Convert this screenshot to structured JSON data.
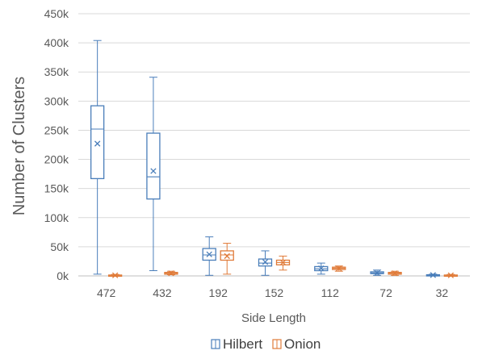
{
  "chart_data": {
    "type": "boxplot",
    "xlabel": "Side Length",
    "ylabel": "Number of Clusters",
    "ylim": [
      0,
      450000
    ],
    "y_ticks": [
      0,
      50000,
      100000,
      150000,
      200000,
      250000,
      300000,
      350000,
      400000,
      450000
    ],
    "y_tick_labels": [
      "0k",
      "50k",
      "100k",
      "150k",
      "200k",
      "250k",
      "300k",
      "350k",
      "400k",
      "450k"
    ],
    "categories": [
      "472",
      "432",
      "192",
      "152",
      "112",
      "72",
      "32"
    ],
    "grid": "horizontal",
    "legend_position": "bottom",
    "series": [
      {
        "name": "Hilbert",
        "color": "#4a7eba",
        "boxes": [
          {
            "min": 3000,
            "q1": 167000,
            "median": 252000,
            "q3": 292000,
            "max": 404000,
            "mean": 227000
          },
          {
            "min": 9000,
            "q1": 132000,
            "median": 170000,
            "q3": 245000,
            "max": 341000,
            "mean": 180000
          },
          {
            "min": 1000,
            "q1": 27000,
            "median": 36000,
            "q3": 47000,
            "max": 67000,
            "mean": 37000
          },
          {
            "min": 1000,
            "q1": 17000,
            "median": 22000,
            "q3": 29000,
            "max": 43000,
            "mean": 24000
          },
          {
            "min": 3000,
            "q1": 9000,
            "median": 12000,
            "q3": 16000,
            "max": 22000,
            "mean": 13000
          },
          {
            "min": 1000,
            "q1": 4000,
            "median": 5000,
            "q3": 7000,
            "max": 10000,
            "mean": 5000
          },
          {
            "min": 0,
            "q1": 1000,
            "median": 1500,
            "q3": 2000,
            "max": 3000,
            "mean": 1500
          }
        ]
      },
      {
        "name": "Onion",
        "color": "#e07b39",
        "boxes": [
          {
            "min": 0,
            "q1": 500,
            "median": 1000,
            "q3": 1500,
            "max": 2500,
            "mean": 1000
          },
          {
            "min": 2000,
            "q1": 3000,
            "median": 4500,
            "q3": 6000,
            "max": 8000,
            "mean": 4500
          },
          {
            "min": 3000,
            "q1": 27000,
            "median": 36000,
            "q3": 43000,
            "max": 56000,
            "mean": 34000
          },
          {
            "min": 10000,
            "q1": 19000,
            "median": 23000,
            "q3": 27000,
            "max": 34000,
            "mean": 23000
          },
          {
            "min": 8000,
            "q1": 11000,
            "median": 13000,
            "q3": 15000,
            "max": 17000,
            "mean": 13000
          },
          {
            "min": 1000,
            "q1": 3000,
            "median": 4500,
            "q3": 6000,
            "max": 8000,
            "mean": 4500
          },
          {
            "min": 0,
            "q1": 500,
            "median": 1000,
            "q3": 1500,
            "max": 2500,
            "mean": 1000
          }
        ]
      }
    ]
  }
}
